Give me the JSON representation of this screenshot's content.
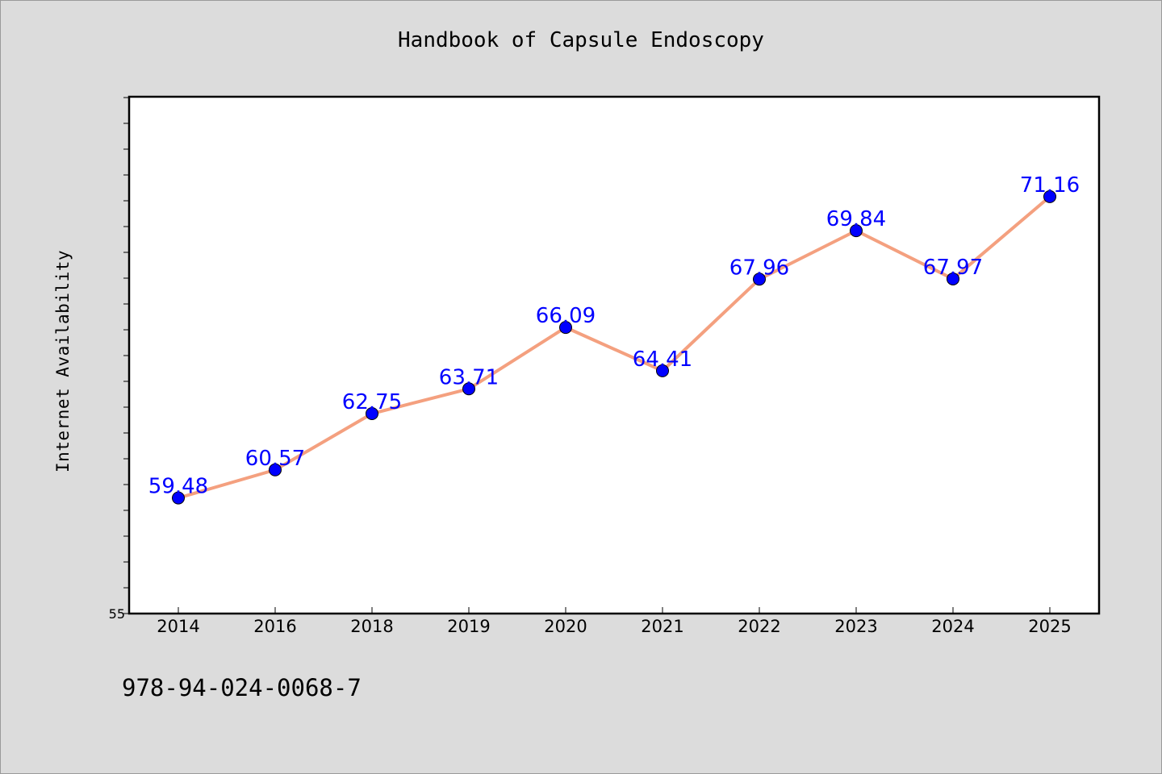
{
  "chart_data": {
    "type": "line",
    "title": "Handbook of Capsule Endoscopy",
    "ylabel": "Internet Availability",
    "xlabel": "",
    "categories": [
      "2014",
      "2016",
      "2018",
      "2019",
      "2020",
      "2021",
      "2022",
      "2023",
      "2024",
      "2025"
    ],
    "series": [
      {
        "values": [
          59.48,
          60.57,
          62.75,
          63.71,
          66.09,
          64.41,
          67.96,
          69.84,
          67.97,
          71.16
        ]
      }
    ],
    "data_labels": [
      "59.48",
      "60.57",
      "62.75",
      "63.71",
      "66.09",
      "64.41",
      "67.96",
      "69.84",
      "67.97",
      "71.16"
    ],
    "ylim": [
      55,
      75
    ],
    "y_tick_label": "55",
    "y_minor_tick_step": 1,
    "grid": false,
    "line_color": "#f4a07f",
    "marker_color": "#0000ff",
    "label_color": "#0000ff",
    "background_color": "#dcdcdc",
    "plot_background_color": "#ffffff"
  },
  "footer": {
    "isbn": "978-94-024-0068-7"
  }
}
